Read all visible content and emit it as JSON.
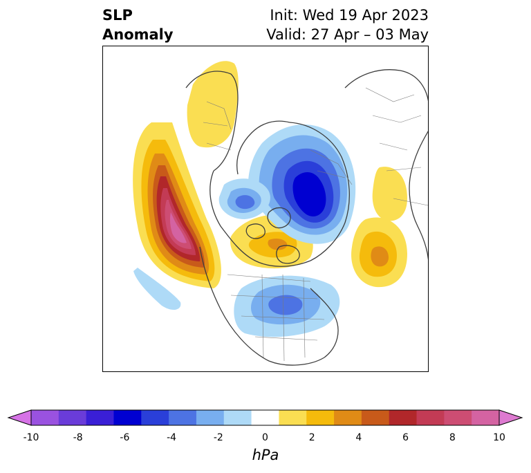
{
  "header": {
    "variable": "SLP",
    "variable_line2": "Anomaly",
    "init": "Init: Wed 19 Apr 2023",
    "valid": "Valid: 27 Apr – 03 May"
  },
  "colorbar": {
    "units": "hPa",
    "tick_labels": [
      "-10",
      "-8",
      "-6",
      "-4",
      "-2",
      "0",
      "2",
      "4",
      "6",
      "8",
      "10"
    ],
    "levels": [
      -10,
      -9,
      -8,
      -7,
      -6,
      -5,
      -4,
      -3,
      -2,
      -1,
      1,
      2,
      3,
      4,
      5,
      6,
      7,
      8,
      9,
      10
    ],
    "colors": [
      "#d673e6",
      "#9a52e0",
      "#6a3cd9",
      "#3a1fd6",
      "#0000d1",
      "#2a3fd9",
      "#4d73e3",
      "#78aeef",
      "#aedaf7",
      "#ffffff",
      "#fade52",
      "#f5bb0c",
      "#e08b16",
      "#c85a1a",
      "#b1272a",
      "#c33b55",
      "#cd4d73",
      "#d463a2",
      "#dd7ad0"
    ],
    "extend": "both"
  },
  "map": {
    "projection": "north polar stereographic",
    "anomalies": [
      {
        "region": "Northeast Pacific / West of Canada",
        "sign": "positive",
        "peak_hpa": 9
      },
      {
        "region": "Yukon / Alaska interior",
        "sign": "positive",
        "peak_hpa": 1
      },
      {
        "region": "Canadian Arctic Archipelago",
        "sign": "positive",
        "peak_hpa": 2
      },
      {
        "region": "Northern Siberia / Kara Sea",
        "sign": "negative",
        "peak_hpa": -6
      },
      {
        "region": "Eastern Arctic Ocean",
        "sign": "negative",
        "peak_hpa": -4
      },
      {
        "region": "Eastern North America",
        "sign": "negative",
        "peak_hpa": -3
      },
      {
        "region": "Central Pacific",
        "sign": "negative",
        "peak_hpa": -1
      },
      {
        "region": "Central Asia",
        "sign": "positive",
        "peak_hpa": 3
      }
    ]
  }
}
